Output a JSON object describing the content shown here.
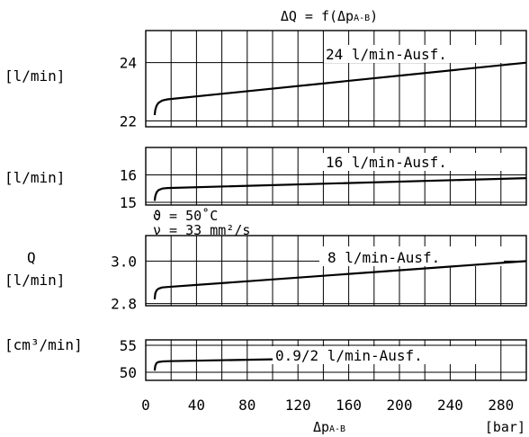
{
  "chart_data": [
    {
      "type": "line",
      "title": "ΔQ = f(Δp",
      "title_sub": "A-B",
      "title_close": ")",
      "ylabel": "[l/min]",
      "ylim": [
        21.8,
        25.1
      ],
      "yticks": [
        "24",
        "22"
      ],
      "ytick_values": [
        24,
        22
      ],
      "xlim": [
        0,
        300
      ],
      "grid": true,
      "series": [
        {
          "name": "24 l/min-Ausf.",
          "x": [
            7,
            7.5,
            8.5,
            10,
            13,
            17,
            300
          ],
          "y": [
            22.2,
            22.38,
            22.52,
            22.62,
            22.7,
            22.74,
            24.0
          ]
        }
      ]
    },
    {
      "type": "line",
      "ylabel": "[l/min]",
      "ylim": [
        14.9,
        17.0
      ],
      "yticks": [
        "16",
        "15"
      ],
      "ytick_values": [
        16,
        15
      ],
      "xlim": [
        0,
        300
      ],
      "grid": true,
      "series": [
        {
          "name": "16 l/min-Ausf.",
          "x": [
            7,
            7.5,
            8.5,
            10,
            13,
            17,
            300
          ],
          "y": [
            15.05,
            15.22,
            15.36,
            15.44,
            15.5,
            15.52,
            15.88
          ]
        }
      ],
      "annotations": [
        "ϑ = 50˚C",
        "ν = 33 mm²/s"
      ]
    },
    {
      "type": "line",
      "ylabel_top": "Q",
      "ylabel": "[l/min]",
      "ylim": [
        2.79,
        3.12
      ],
      "yticks": [
        "3.0",
        "2.8"
      ],
      "ytick_values": [
        3.0,
        2.8
      ],
      "xlim": [
        0,
        300
      ],
      "grid": true,
      "series": [
        {
          "name": "8 l/min-Ausf.",
          "x": [
            7,
            7.5,
            8.5,
            10,
            13,
            17,
            300
          ],
          "y": [
            2.82,
            2.848,
            2.862,
            2.87,
            2.876,
            2.878,
            3.0
          ]
        }
      ]
    },
    {
      "type": "line",
      "ylabel": "[cm³/min]",
      "ylim": [
        48.5,
        56
      ],
      "yticks": [
        "55",
        "50"
      ],
      "ytick_values": [
        55,
        50
      ],
      "xlim": [
        0,
        300
      ],
      "grid": true,
      "series": [
        {
          "name": "0.9/2 l/min-Ausf.",
          "x": [
            7,
            7.5,
            8.5,
            10,
            13,
            17,
            100
          ],
          "y": [
            50.3,
            51.2,
            51.7,
            51.9,
            52.0,
            52.05,
            52.4
          ]
        }
      ]
    }
  ],
  "xaxis": {
    "ticks": [
      "0",
      "40",
      "80",
      "120",
      "160",
      "200",
      "240",
      "280"
    ],
    "tick_values": [
      0,
      40,
      80,
      120,
      160,
      200,
      240,
      280
    ],
    "label": "Δp",
    "label_sub": "A-B",
    "unit": "[bar]"
  }
}
